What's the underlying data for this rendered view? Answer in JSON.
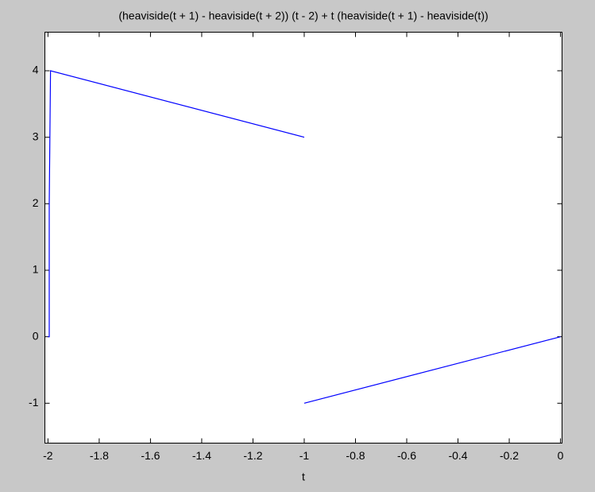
{
  "chart_data": {
    "type": "line",
    "title": "(heaviside(t + 1) - heaviside(t + 2)) (t - 2) + t (heaviside(t + 1) - heaviside(t))",
    "x_label": "t",
    "x": [
      -2,
      -1.995,
      -1.995,
      -1.99,
      -1,
      -1,
      -1,
      0
    ],
    "series": [
      {
        "color": "#0000ff",
        "values": [
          0,
          0,
          2,
          4,
          3,
          null,
          -1,
          0
        ]
      }
    ],
    "xlim": [
      -2.012,
      0.006
    ],
    "ylim": [
      -1.6,
      4.58
    ],
    "xticks": [
      -2,
      -1.8,
      -1.6,
      -1.4,
      -1.2,
      -1,
      -0.8,
      -0.6,
      -0.4,
      -0.2,
      0
    ],
    "yticks": [
      -1,
      0,
      1,
      2,
      3,
      4
    ],
    "grid": false
  }
}
